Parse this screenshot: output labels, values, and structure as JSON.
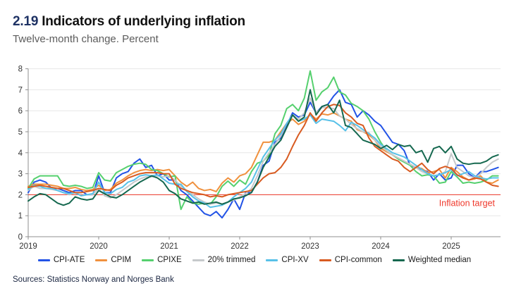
{
  "header": {
    "figure_number": "2.19",
    "title": "Indicators of underlying inflation",
    "subtitle": "Twelve-month change. Percent"
  },
  "footer": {
    "sources": "Sources: Statistics Norway and Norges Bank"
  },
  "colors": {
    "accent_navy": "#1e3264",
    "grid": "#e7e7e7",
    "axis": "#8f8f8f",
    "tick_text": "#333333",
    "target_red": "#ef372a"
  },
  "chart_data": {
    "type": "line",
    "title": "2.19 Indicators of underlying inflation",
    "subtitle": "Twelve-month change. Percent",
    "x_start": "2019-01",
    "x_end": "2025-09",
    "x_tick_labels": [
      "2019",
      "2020",
      "2021",
      "2022",
      "2023",
      "2024",
      "2025"
    ],
    "y_tick_labels": [
      "0",
      "1",
      "2",
      "3",
      "4",
      "5",
      "6",
      "7",
      "8"
    ],
    "ylim": [
      0,
      8
    ],
    "grid": true,
    "legend_position": "bottom",
    "target_line": {
      "value": 2,
      "label": "Inflation target",
      "color": "#ef372a"
    },
    "series": [
      {
        "name": "CPI-ATE",
        "color": "#2253e6",
        "values": [
          2.1,
          2.6,
          2.7,
          2.6,
          2.3,
          2.3,
          2.2,
          2.1,
          2.2,
          2.2,
          2.0,
          2.0,
          2.9,
          2.1,
          2.1,
          2.8,
          3.0,
          3.1,
          3.5,
          3.7,
          3.3,
          3.4,
          2.9,
          3.0,
          2.7,
          2.7,
          2.2,
          2.0,
          1.7,
          1.4,
          1.1,
          1.0,
          1.2,
          0.9,
          1.3,
          1.8,
          1.3,
          2.1,
          2.1,
          2.6,
          3.4,
          3.6,
          4.5,
          4.7,
          5.3,
          5.9,
          5.7,
          5.8,
          6.4,
          5.9,
          6.2,
          6.3,
          6.7,
          7.0,
          6.4,
          6.3,
          5.7,
          6.0,
          5.8,
          5.5,
          5.3,
          4.9,
          4.5,
          4.4,
          4.1,
          3.4,
          3.3,
          3.2,
          3.1,
          2.7,
          3.0,
          2.7,
          2.8,
          3.4,
          3.4,
          3.0,
          2.8,
          3.1,
          3.1,
          3.2,
          3.3
        ]
      },
      {
        "name": "CPIM",
        "color": "#f0913e",
        "values": [
          2.4,
          2.5,
          2.5,
          2.5,
          2.45,
          2.4,
          2.3,
          2.3,
          2.35,
          2.25,
          2.2,
          2.25,
          2.45,
          2.2,
          2.25,
          2.55,
          2.7,
          2.9,
          3.05,
          3.15,
          3.2,
          3.15,
          3.2,
          3.15,
          3.2,
          2.9,
          2.6,
          2.4,
          2.6,
          2.3,
          2.2,
          2.25,
          2.15,
          2.55,
          2.8,
          2.6,
          2.9,
          3.0,
          3.3,
          3.9,
          4.5,
          4.5,
          4.6,
          5.0,
          5.4,
          5.6,
          5.35,
          5.5,
          5.85,
          5.6,
          5.85,
          5.8,
          5.9,
          5.75,
          5.6,
          5.5,
          5.1,
          5.0,
          4.85,
          4.6,
          4.2,
          4.05,
          3.9,
          3.75,
          3.6,
          3.45,
          3.3,
          3.25,
          3.05,
          3.1,
          3.2,
          2.8,
          3.3,
          3.1,
          2.85,
          2.7,
          2.75,
          2.9,
          2.6,
          2.55,
          2.7
        ]
      },
      {
        "name": "CPIXE",
        "color": "#55d06e",
        "values": [
          2.3,
          2.75,
          2.9,
          2.9,
          2.9,
          2.9,
          2.45,
          2.4,
          2.45,
          2.4,
          2.3,
          2.35,
          3.05,
          2.7,
          2.65,
          3.05,
          3.2,
          3.35,
          3.45,
          3.5,
          3.45,
          3.2,
          3.15,
          3.0,
          2.85,
          2.9,
          1.3,
          1.9,
          1.6,
          1.55,
          1.6,
          1.55,
          1.9,
          2.4,
          2.65,
          2.4,
          2.7,
          2.5,
          3.1,
          3.5,
          3.6,
          3.9,
          4.9,
          5.3,
          6.1,
          6.3,
          6.0,
          6.6,
          7.9,
          6.5,
          6.9,
          7.1,
          7.6,
          6.9,
          6.75,
          6.35,
          6.2,
          6.0,
          5.6,
          5.0,
          4.5,
          4.1,
          3.9,
          3.7,
          3.55,
          3.4,
          3.1,
          2.9,
          2.95,
          2.9,
          2.55,
          2.6,
          3.1,
          2.85,
          2.55,
          2.6,
          2.55,
          2.6,
          2.7,
          2.9,
          2.9
        ]
      },
      {
        "name": "20% trimmed",
        "color": "#c6c9cb",
        "values": [
          2.2,
          2.4,
          2.3,
          2.3,
          2.25,
          2.2,
          2.1,
          2.0,
          2.1,
          1.95,
          2.0,
          2.0,
          2.3,
          1.95,
          1.85,
          2.0,
          2.2,
          2.4,
          2.6,
          2.75,
          2.85,
          2.85,
          2.9,
          2.85,
          2.9,
          2.7,
          2.4,
          2.2,
          2.0,
          1.8,
          1.65,
          1.55,
          1.6,
          1.55,
          1.65,
          1.75,
          1.9,
          2.05,
          2.3,
          2.9,
          3.6,
          4.0,
          4.4,
          4.8,
          5.4,
          5.8,
          5.6,
          5.9,
          6.6,
          5.9,
          6.15,
          6.15,
          6.1,
          5.75,
          5.6,
          5.35,
          5.15,
          5.0,
          4.95,
          4.6,
          4.3,
          4.1,
          3.9,
          3.75,
          3.6,
          3.45,
          3.3,
          3.1,
          3.0,
          2.9,
          2.95,
          3.1,
          3.95,
          3.3,
          3.1,
          2.9,
          2.8,
          3.0,
          3.3,
          3.55,
          3.7
        ]
      },
      {
        "name": "CPI-XV",
        "color": "#58c1e8",
        "values": [
          2.25,
          2.45,
          2.4,
          2.3,
          2.3,
          2.2,
          2.1,
          2.05,
          2.1,
          1.95,
          2.0,
          2.05,
          2.6,
          2.1,
          2.05,
          2.25,
          2.35,
          2.6,
          2.7,
          2.9,
          2.95,
          2.9,
          2.95,
          2.75,
          2.55,
          2.5,
          2.5,
          2.15,
          1.9,
          1.7,
          1.6,
          1.4,
          1.45,
          1.5,
          1.65,
          1.9,
          2.1,
          2.3,
          2.6,
          3.2,
          3.8,
          4.2,
          4.6,
          4.9,
          5.4,
          5.8,
          5.5,
          5.6,
          5.8,
          5.4,
          5.6,
          5.55,
          5.5,
          5.3,
          5.05,
          5.45,
          5.3,
          5.1,
          4.9,
          4.7,
          4.4,
          4.2,
          4.0,
          3.9,
          3.8,
          3.6,
          3.4,
          3.2,
          3.0,
          2.9,
          2.95,
          3.05,
          3.2,
          2.9,
          3.0,
          3.1,
          2.9,
          2.8,
          2.75,
          2.8,
          2.8
        ]
      },
      {
        "name": "CPI-common",
        "color": "#d85b21",
        "values": [
          2.35,
          2.4,
          2.45,
          2.4,
          2.35,
          2.3,
          2.3,
          2.2,
          2.1,
          2.1,
          2.15,
          2.2,
          2.3,
          2.25,
          2.2,
          2.45,
          2.6,
          2.8,
          2.9,
          3.0,
          3.05,
          3.05,
          3.05,
          3.0,
          3.0,
          2.5,
          2.3,
          2.2,
          2.1,
          2.05,
          2.0,
          1.9,
          1.95,
          1.9,
          2.0,
          2.05,
          2.1,
          2.15,
          2.2,
          2.5,
          2.8,
          3.0,
          3.05,
          3.3,
          3.7,
          4.3,
          4.85,
          5.3,
          5.9,
          5.5,
          5.9,
          6.2,
          6.3,
          6.25,
          5.9,
          5.7,
          5.4,
          5.3,
          4.7,
          4.3,
          4.1,
          3.9,
          3.7,
          3.6,
          3.3,
          3.1,
          3.3,
          3.5,
          3.2,
          3.0,
          3.25,
          3.35,
          3.25,
          2.95,
          2.8,
          2.7,
          2.8,
          2.75,
          2.6,
          2.45,
          2.4
        ]
      },
      {
        "name": "Weighted median",
        "color": "#15684f",
        "values": [
          1.7,
          1.9,
          2.05,
          2.0,
          1.8,
          1.6,
          1.5,
          1.6,
          1.9,
          1.8,
          1.75,
          1.8,
          2.2,
          2.05,
          1.9,
          1.85,
          2.0,
          2.2,
          2.4,
          2.6,
          2.75,
          2.9,
          2.8,
          2.6,
          2.2,
          2.05,
          1.8,
          1.7,
          1.6,
          1.65,
          1.55,
          1.6,
          1.65,
          1.55,
          1.65,
          1.8,
          1.85,
          1.95,
          2.1,
          2.6,
          3.3,
          3.8,
          4.3,
          4.6,
          5.2,
          5.8,
          5.5,
          5.7,
          7.0,
          5.8,
          6.2,
          6.3,
          5.9,
          6.5,
          5.3,
          5.2,
          4.9,
          4.6,
          4.5,
          4.4,
          4.2,
          4.35,
          4.15,
          4.4,
          4.3,
          4.35,
          4.0,
          4.1,
          3.55,
          4.2,
          4.3,
          4.0,
          4.3,
          3.7,
          3.5,
          3.45,
          3.5,
          3.5,
          3.6,
          3.8,
          3.9
        ]
      }
    ]
  }
}
